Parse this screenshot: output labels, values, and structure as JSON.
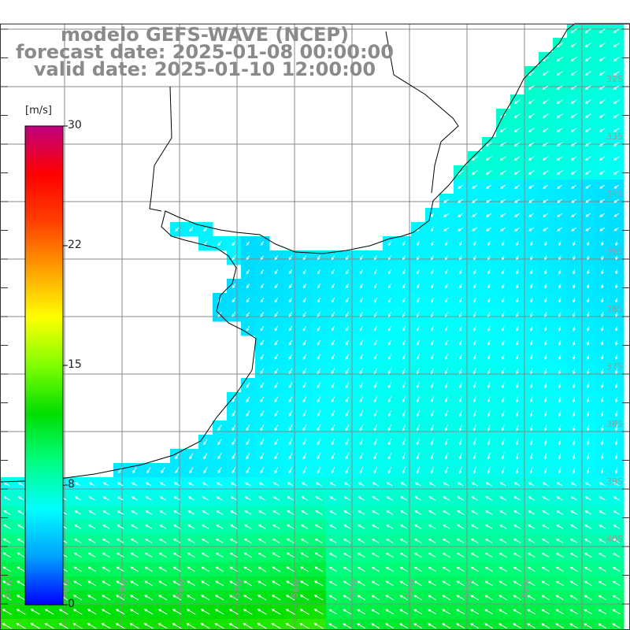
{
  "header": {
    "line1": "modelo GEFS-WAVE (NCEP)",
    "line2": "forecast date: 2025-01-08 00:00:00",
    "line3": "valid date: 2025-01-10 12:00:00"
  },
  "colorbar": {
    "unit": "[m/s]",
    "ticks": [
      "30",
      "22",
      "15",
      "8",
      "0"
    ],
    "min": 0,
    "max": 30,
    "colors": [
      "#0000ff",
      "#00a0ff",
      "#00ffff",
      "#00ff80",
      "#00dd00",
      "#80ff00",
      "#ffff00",
      "#ffa000",
      "#ff4000",
      "#ff0000",
      "#c00080"
    ]
  },
  "map": {
    "land_color": "#ffffff",
    "grid_color": "#888888",
    "lat_labels": [
      "32S",
      "33S",
      "34S",
      "35S",
      "36S",
      "37S",
      "38S",
      "39S",
      "40S"
    ],
    "lon_labels": [
      "61W",
      "60W",
      "59W",
      "58W",
      "57W",
      "56W",
      "55W",
      "54W",
      "53W",
      "52W"
    ]
  }
}
